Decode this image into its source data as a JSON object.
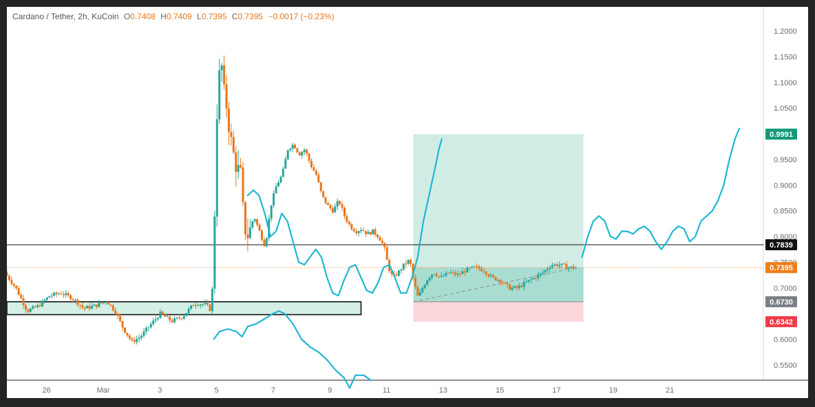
{
  "header": {
    "symbol": "Cardano / Tether, 2h, KuCoin",
    "o_label": "O",
    "o_value": "0.7408",
    "h_label": "H",
    "h_value": "0.7409",
    "l_label": "L",
    "l_value": "0.7395",
    "c_label": "C",
    "c_value": "0.7395",
    "change": "−0.0017 (−0.23%)"
  },
  "colors": {
    "up": "#26a69a",
    "down": "#e8761a",
    "projection": "#1fb6d3",
    "target_zone": "#d1ece5",
    "stop_zone": "#fbd5da",
    "box_fill": "#d3efe6",
    "target_badge": "#149a7a",
    "price_badge": "#f07d1a",
    "entry_badge": "#7a7f86",
    "stop_badge": "#ef3b4a",
    "level_badge": "#111111"
  },
  "chart_data": {
    "type": "candlestick",
    "symbol": "Cardano / Tether",
    "interval": "2h",
    "exchange": "KuCoin",
    "ylim": [
      0.52,
      1.22
    ],
    "y_ticks": [
      {
        "value": 1.2,
        "label": "1.2000"
      },
      {
        "value": 1.15,
        "label": "1.1500"
      },
      {
        "value": 1.1,
        "label": "1.1000"
      },
      {
        "value": 1.05,
        "label": "1.0500"
      },
      {
        "value": 0.95,
        "label": "0.9500"
      },
      {
        "value": 0.9,
        "label": "0.9000"
      },
      {
        "value": 0.85,
        "label": "0.8500"
      },
      {
        "value": 0.8,
        "label": "0.8000"
      },
      {
        "value": 0.75,
        "label": "0.7500"
      },
      {
        "value": 0.7,
        "label": "0.7000"
      },
      {
        "value": 0.6,
        "label": "0.6000"
      },
      {
        "value": 0.55,
        "label": "0.5500"
      }
    ],
    "x_ticks": [
      {
        "day": 26,
        "label": "26"
      },
      {
        "day": 28,
        "label": "Mar"
      },
      {
        "day": 30,
        "label": "3"
      },
      {
        "day": 32,
        "label": "5"
      },
      {
        "day": 34,
        "label": "7"
      },
      {
        "day": 36,
        "label": "9"
      },
      {
        "day": 38,
        "label": "11"
      },
      {
        "day": 40,
        "label": "13"
      },
      {
        "day": 42,
        "label": "15"
      },
      {
        "day": 44,
        "label": "17"
      },
      {
        "day": 46,
        "label": "19"
      },
      {
        "day": 48,
        "label": "21"
      }
    ],
    "price_path": [
      [
        24.6,
        0.73
      ],
      [
        25.0,
        0.7
      ],
      [
        25.4,
        0.655
      ],
      [
        25.8,
        0.665
      ],
      [
        26.2,
        0.685
      ],
      [
        26.6,
        0.69
      ],
      [
        27.0,
        0.68
      ],
      [
        27.4,
        0.66
      ],
      [
        27.8,
        0.665
      ],
      [
        28.2,
        0.675
      ],
      [
        28.5,
        0.655
      ],
      [
        28.8,
        0.62
      ],
      [
        29.1,
        0.595
      ],
      [
        29.4,
        0.605
      ],
      [
        29.7,
        0.625
      ],
      [
        30.1,
        0.65
      ],
      [
        30.5,
        0.635
      ],
      [
        30.9,
        0.645
      ],
      [
        31.3,
        0.67
      ],
      [
        31.7,
        0.668
      ],
      [
        31.9,
        0.655
      ],
      [
        32.0,
        0.78
      ],
      [
        32.05,
        0.98
      ],
      [
        32.15,
        1.1
      ],
      [
        32.25,
        1.14
      ],
      [
        32.35,
        1.08
      ],
      [
        32.45,
        1.05
      ],
      [
        32.55,
        1.0
      ],
      [
        32.75,
        0.94
      ],
      [
        32.95,
        0.92
      ],
      [
        33.05,
        0.82
      ],
      [
        33.2,
        0.8
      ],
      [
        33.4,
        0.84
      ],
      [
        33.6,
        0.81
      ],
      [
        33.8,
        0.78
      ],
      [
        34.0,
        0.86
      ],
      [
        34.2,
        0.9
      ],
      [
        34.4,
        0.92
      ],
      [
        34.6,
        0.97
      ],
      [
        34.8,
        0.98
      ],
      [
        35.0,
        0.96
      ],
      [
        35.2,
        0.97
      ],
      [
        35.4,
        0.94
      ],
      [
        35.6,
        0.92
      ],
      [
        35.8,
        0.88
      ],
      [
        36.0,
        0.86
      ],
      [
        36.2,
        0.85
      ],
      [
        36.4,
        0.87
      ],
      [
        36.6,
        0.84
      ],
      [
        36.8,
        0.82
      ],
      [
        37.0,
        0.81
      ],
      [
        37.2,
        0.815
      ],
      [
        37.4,
        0.805
      ],
      [
        37.6,
        0.81
      ],
      [
        37.8,
        0.8
      ],
      [
        38.0,
        0.78
      ],
      [
        38.15,
        0.74
      ],
      [
        38.3,
        0.72
      ],
      [
        38.5,
        0.73
      ],
      [
        38.7,
        0.745
      ],
      [
        38.9,
        0.755
      ],
      [
        39.05,
        0.71
      ],
      [
        39.2,
        0.68
      ],
      [
        39.35,
        0.7
      ],
      [
        39.55,
        0.72
      ],
      [
        39.75,
        0.73
      ],
      [
        40.0,
        0.72
      ],
      [
        40.3,
        0.73
      ],
      [
        40.6,
        0.725
      ],
      [
        40.9,
        0.735
      ],
      [
        41.2,
        0.74
      ],
      [
        41.5,
        0.735
      ],
      [
        41.8,
        0.72
      ],
      [
        42.1,
        0.715
      ],
      [
        42.4,
        0.7
      ],
      [
        42.7,
        0.7
      ],
      [
        43.0,
        0.71
      ],
      [
        43.3,
        0.72
      ],
      [
        43.6,
        0.73
      ],
      [
        43.9,
        0.745
      ],
      [
        44.2,
        0.745
      ],
      [
        44.5,
        0.74
      ],
      [
        44.69,
        0.7395
      ]
    ],
    "projection_paths": [
      [
        [
          31.9,
          0.6
        ],
        [
          32.1,
          0.615
        ],
        [
          32.4,
          0.62
        ],
        [
          32.7,
          0.615
        ],
        [
          32.9,
          0.605
        ],
        [
          33.1,
          0.625
        ],
        [
          33.4,
          0.63
        ],
        [
          33.7,
          0.64
        ],
        [
          34.0,
          0.65
        ],
        [
          34.2,
          0.655
        ],
        [
          34.4,
          0.65
        ],
        [
          34.7,
          0.63
        ],
        [
          35.0,
          0.6
        ],
        [
          35.3,
          0.585
        ],
        [
          35.6,
          0.575
        ],
        [
          35.9,
          0.56
        ],
        [
          36.2,
          0.54
        ],
        [
          36.5,
          0.525
        ],
        [
          36.7,
          0.505
        ],
        [
          36.9,
          0.53
        ],
        [
          37.2,
          0.53
        ],
        [
          37.45,
          0.52
        ]
      ],
      [
        [
          33.1,
          0.88
        ],
        [
          33.3,
          0.89
        ],
        [
          33.5,
          0.88
        ],
        [
          33.7,
          0.845
        ],
        [
          33.9,
          0.8
        ],
        [
          34.1,
          0.81
        ],
        [
          34.3,
          0.845
        ],
        [
          34.5,
          0.83
        ],
        [
          34.7,
          0.79
        ],
        [
          34.9,
          0.75
        ],
        [
          35.1,
          0.745
        ],
        [
          35.3,
          0.76
        ],
        [
          35.5,
          0.775
        ],
        [
          35.7,
          0.76
        ],
        [
          35.9,
          0.72
        ],
        [
          36.1,
          0.69
        ],
        [
          36.3,
          0.685
        ],
        [
          36.5,
          0.715
        ],
        [
          36.7,
          0.74
        ],
        [
          36.9,
          0.745
        ],
        [
          37.1,
          0.72
        ],
        [
          37.3,
          0.695
        ],
        [
          37.5,
          0.69
        ],
        [
          37.7,
          0.71
        ],
        [
          37.9,
          0.74
        ],
        [
          38.1,
          0.745
        ],
        [
          38.3,
          0.72
        ],
        [
          38.5,
          0.69
        ],
        [
          38.7,
          0.69
        ],
        [
          38.9,
          0.72
        ],
        [
          39.1,
          0.76
        ],
        [
          39.3,
          0.83
        ],
        [
          39.5,
          0.88
        ],
        [
          39.7,
          0.93
        ],
        [
          39.85,
          0.97
        ],
        [
          39.95,
          0.99
        ]
      ],
      [
        [
          44.9,
          0.76
        ],
        [
          45.1,
          0.8
        ],
        [
          45.3,
          0.83
        ],
        [
          45.5,
          0.84
        ],
        [
          45.7,
          0.83
        ],
        [
          45.9,
          0.8
        ],
        [
          46.1,
          0.795
        ],
        [
          46.3,
          0.81
        ],
        [
          46.5,
          0.81
        ],
        [
          46.7,
          0.805
        ],
        [
          46.9,
          0.815
        ],
        [
          47.1,
          0.82
        ],
        [
          47.3,
          0.81
        ],
        [
          47.5,
          0.79
        ],
        [
          47.7,
          0.775
        ],
        [
          47.9,
          0.79
        ],
        [
          48.1,
          0.81
        ],
        [
          48.3,
          0.82
        ],
        [
          48.5,
          0.815
        ],
        [
          48.7,
          0.79
        ],
        [
          48.9,
          0.8
        ],
        [
          49.1,
          0.83
        ],
        [
          49.3,
          0.84
        ],
        [
          49.5,
          0.85
        ],
        [
          49.7,
          0.87
        ],
        [
          49.9,
          0.9
        ],
        [
          50.1,
          0.95
        ],
        [
          50.3,
          0.99
        ],
        [
          50.45,
          1.01
        ]
      ]
    ],
    "levels": [
      {
        "name": "resistance",
        "value": 0.7839,
        "label": "0.7839"
      },
      {
        "name": "last-price",
        "value": 0.7395,
        "label": "0.7395"
      }
    ],
    "position": {
      "type": "long",
      "entry": 0.673,
      "entry_label": "0.6730",
      "target": 0.9991,
      "target_label": "0.9991",
      "stop": 0.6342,
      "stop_label": "0.6342",
      "start_day": 38.95,
      "end_day": 44.95
    },
    "support_box": {
      "top": 0.673,
      "bottom": 0.648,
      "start_day": 24.6,
      "end_day": 37.1
    }
  }
}
